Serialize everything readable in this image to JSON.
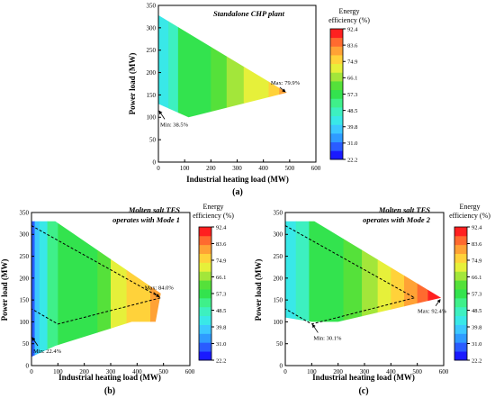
{
  "colors": {
    "levels": [
      "#1a1aff",
      "#2a5cff",
      "#2f9bff",
      "#3cc8ff",
      "#39e8e8",
      "#3df0c0",
      "#3ff08a",
      "#33e34e",
      "#55e13a",
      "#a3e63a",
      "#e6f03a",
      "#ffd23a",
      "#ffa235",
      "#ff6a2f",
      "#ff2020"
    ]
  },
  "colorbar": {
    "title_line1": "Energy",
    "title_line2": "efficiency (%)",
    "labels": [
      "92.4",
      "83.6",
      "74.9",
      "66.1",
      "57.3",
      "48.5",
      "39.8",
      "31.0",
      "22.2"
    ]
  },
  "chart_data": [
    {
      "type": "heatmap",
      "panel": "(a)",
      "title": "Standalone CHP plant",
      "xlabel": "Industrial heating load (MW)",
      "ylabel": "Power load (MW)",
      "xlim": [
        0,
        600
      ],
      "ylim": [
        0,
        350
      ],
      "xticks": [
        "0",
        "100",
        "200",
        "300",
        "400",
        "500",
        "600"
      ],
      "yticks": [
        "0",
        "50",
        "100",
        "150",
        "200",
        "250",
        "300",
        "350"
      ],
      "region": [
        [
          0,
          328
        ],
        [
          0,
          130
        ],
        [
          115,
          100
        ],
        [
          490,
          155
        ]
      ],
      "max": {
        "x": 490,
        "y": 155,
        "value": 79.9,
        "label": "Max: 79.9%"
      },
      "min": {
        "x": 0,
        "y": 120,
        "value": 38.5,
        "label": "Min: 38.5%"
      },
      "bands": [
        {
          "x": [
            0,
            38
          ],
          "value": 44
        },
        {
          "x": [
            38,
            75
          ],
          "value": 50
        },
        {
          "x": [
            75,
            200
          ],
          "value": 55
        },
        {
          "x": [
            200,
            260
          ],
          "value": 60
        },
        {
          "x": [
            260,
            325
          ],
          "value": 65
        },
        {
          "x": [
            325,
            385
          ],
          "value": 69
        },
        {
          "x": [
            385,
            420
          ],
          "value": 73
        },
        {
          "x": [
            420,
            460
          ],
          "value": 76
        },
        {
          "x": [
            460,
            490
          ],
          "value": 79
        }
      ]
    },
    {
      "type": "heatmap",
      "panel": "(b)",
      "title_line1": "Molten salt TES",
      "title_line2": "operates with Mode 1",
      "xlabel": "Industrial heating load (MW)",
      "ylabel": "Power load (MW)",
      "xlim": [
        0,
        600
      ],
      "ylim": [
        0,
        350
      ],
      "xticks": [
        "0",
        "100",
        "200",
        "300",
        "400",
        "500",
        "600"
      ],
      "yticks": [
        "0",
        "50",
        "100",
        "150",
        "200",
        "250",
        "300",
        "350"
      ],
      "region": [
        [
          0,
          330
        ],
        [
          90,
          330
        ],
        [
          490,
          165
        ],
        [
          470,
          100
        ],
        [
          380,
          100
        ],
        [
          90,
          45
        ],
        [
          0,
          20
        ]
      ],
      "dashed_region": [
        [
          0,
          320
        ],
        [
          490,
          155
        ],
        [
          100,
          95
        ],
        [
          0,
          130
        ]
      ],
      "max": {
        "x": 490,
        "y": 155,
        "value": 84.0,
        "label": "Max: 84.0%"
      },
      "min": {
        "x": 0,
        "y": 70,
        "value": 22.4,
        "label": "Min: 22.4%"
      },
      "bands": [
        {
          "x": [
            0,
            12
          ],
          "value": 28
        },
        {
          "x": [
            12,
            30
          ],
          "value": 38
        },
        {
          "x": [
            30,
            60
          ],
          "value": 45
        },
        {
          "x": [
            60,
            100
          ],
          "value": 52
        },
        {
          "x": [
            100,
            250
          ],
          "value": 58
        },
        {
          "x": [
            250,
            300
          ],
          "value": 64
        },
        {
          "x": [
            300,
            360
          ],
          "value": 69
        },
        {
          "x": [
            360,
            410
          ],
          "value": 74
        },
        {
          "x": [
            410,
            450
          ],
          "value": 78
        },
        {
          "x": [
            450,
            490
          ],
          "value": 82
        }
      ]
    },
    {
      "type": "heatmap",
      "panel": "(c)",
      "title_line1": "Molten salt TES",
      "title_line2": "operates with Mode 2",
      "xlabel": "Industrial heating load (MW)",
      "ylabel": "Power load (MW)",
      "xlim": [
        0,
        600
      ],
      "ylim": [
        0,
        350
      ],
      "xticks": [
        "0",
        "100",
        "200",
        "300",
        "400",
        "500",
        "600"
      ],
      "yticks": [
        "0",
        "50",
        "100",
        "150",
        "200",
        "250",
        "300",
        "350"
      ],
      "region": [
        [
          0,
          330
        ],
        [
          110,
          330
        ],
        [
          590,
          155
        ],
        [
          200,
          100
        ],
        [
          100,
          100
        ],
        [
          0,
          110
        ]
      ],
      "dashed_region": [
        [
          0,
          320
        ],
        [
          490,
          155
        ],
        [
          100,
          95
        ],
        [
          0,
          130
        ]
      ],
      "max": {
        "x": 590,
        "y": 155,
        "value": 92.4,
        "label": "Max: 92.4%"
      },
      "min": {
        "x": 100,
        "y": 100,
        "value": 30.1,
        "label": "Min: 30.1%"
      },
      "bands": [
        {
          "x": [
            0,
            40
          ],
          "value": 44
        },
        {
          "x": [
            40,
            90
          ],
          "value": 50
        },
        {
          "x": [
            90,
            220
          ],
          "value": 56
        },
        {
          "x": [
            220,
            290
          ],
          "value": 62
        },
        {
          "x": [
            290,
            350
          ],
          "value": 67
        },
        {
          "x": [
            350,
            400
          ],
          "value": 72
        },
        {
          "x": [
            400,
            450
          ],
          "value": 76
        },
        {
          "x": [
            450,
            500
          ],
          "value": 80
        },
        {
          "x": [
            500,
            540
          ],
          "value": 85
        },
        {
          "x": [
            540,
            590
          ],
          "value": 90
        }
      ]
    }
  ]
}
